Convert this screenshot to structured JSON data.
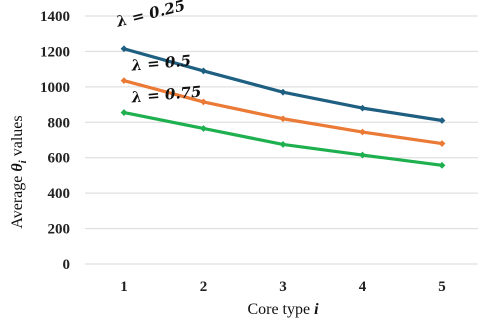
{
  "chart_data": {
    "type": "line",
    "x": [
      1,
      2,
      3,
      4,
      5
    ],
    "x_ticks": [
      "1",
      "2",
      "3",
      "4",
      "5"
    ],
    "y_ticks": [
      "0",
      "200",
      "400",
      "600",
      "800",
      "1000",
      "1200",
      "1400"
    ],
    "ylim": [
      0,
      1400
    ],
    "grid": true,
    "legend": "inline labels at series start",
    "xlabel_text": "Core type ",
    "xlabel_symbol": "i",
    "ylabel_text": "Average ",
    "ylabel_symbol": "θ",
    "ylabel_subscript": "i",
    "ylabel_suffix": "  values",
    "series": [
      {
        "name": "λ = 0.25",
        "color": "#1f5f82",
        "values": [
          1215,
          1090,
          970,
          880,
          810
        ]
      },
      {
        "name": "λ = 0.5",
        "color": "#ea7a36",
        "values": [
          1035,
          915,
          820,
          745,
          680
        ]
      },
      {
        "name": "λ = 0.75",
        "color": "#1eb04f",
        "values": [
          855,
          765,
          675,
          615,
          557
        ]
      }
    ]
  }
}
